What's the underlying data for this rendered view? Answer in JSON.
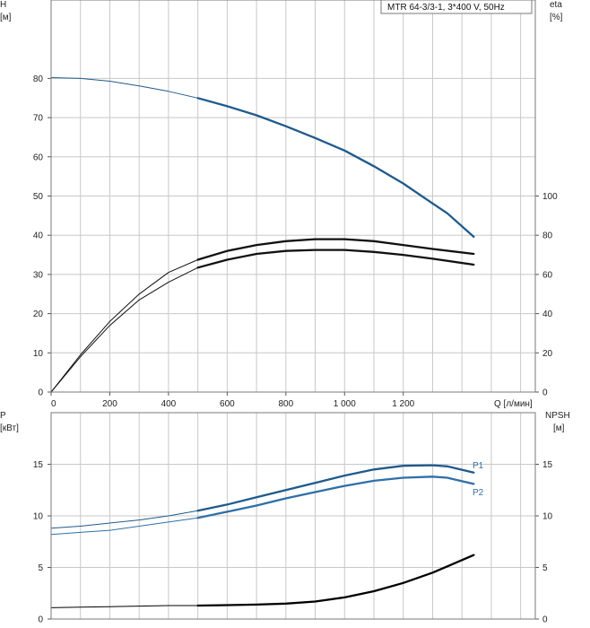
{
  "legend": "MTR 64-3/3-1, 3*400 V, 50Hz",
  "chart_data": [
    {
      "type": "line",
      "xlabel": "Q [л/мин]",
      "ylabel_left": [
        "H",
        "[м]"
      ],
      "ylabel_right": [
        "eta",
        "[%]"
      ],
      "xlim": [
        0,
        1650
      ],
      "ylim_left": [
        0,
        100
      ],
      "ylim_right": [
        0,
        200
      ],
      "xticks": [
        0,
        200,
        400,
        600,
        800,
        1000,
        1200
      ],
      "xtick_labels": [
        "0",
        "200",
        "400",
        "600",
        "800",
        "1 000",
        "1 200"
      ],
      "yticks_left": [
        0,
        10,
        20,
        30,
        40,
        50,
        60,
        70,
        80
      ],
      "yticks_right": [
        0,
        20,
        40,
        60,
        80,
        100
      ],
      "grid": true,
      "series": [
        {
          "axis": "left",
          "color": "#1f5a8c",
          "x": [
            0,
            100,
            200,
            300,
            400,
            500,
            600,
            700,
            800,
            900,
            1000,
            1100,
            1200,
            1300,
            1350,
            1440
          ],
          "y": [
            80.2,
            80.0,
            79.3,
            78.1,
            76.7,
            75.0,
            72.9,
            70.6,
            67.8,
            64.8,
            61.6,
            57.6,
            53.2,
            48.1,
            45.6,
            39.6
          ]
        },
        {
          "axis": "right",
          "color": "#111111",
          "x": [
            0,
            100,
            200,
            300,
            400,
            500,
            600,
            700,
            800,
            900,
            1000,
            1100,
            1200,
            1300,
            1440
          ],
          "y": [
            0,
            19,
            36,
            50,
            61,
            67.5,
            72,
            75,
            77,
            78,
            78,
            77,
            75,
            73,
            70.5
          ]
        },
        {
          "axis": "right",
          "color": "#111111",
          "x": [
            0,
            100,
            200,
            300,
            400,
            500,
            600,
            700,
            800,
            900,
            1000,
            1100,
            1200,
            1300,
            1440
          ],
          "y": [
            0,
            18,
            34,
            47,
            56,
            63.5,
            67.5,
            70.5,
            72,
            72.5,
            72.5,
            71.5,
            70,
            68,
            65
          ]
        }
      ]
    },
    {
      "type": "line",
      "ylabel_left": [
        "P",
        "[кВт]"
      ],
      "ylabel_right": [
        "NPSH",
        "[м]"
      ],
      "xlim": [
        0,
        1650
      ],
      "ylim_left": [
        0,
        20
      ],
      "ylim_right": [
        0,
        20
      ],
      "yticks_left": [
        0,
        5,
        10,
        15
      ],
      "yticks_right": [
        0,
        5,
        10,
        15
      ],
      "grid": true,
      "series": [
        {
          "name": "P1",
          "axis": "left",
          "color": "#1f5a8c",
          "x": [
            0,
            100,
            200,
            300,
            400,
            500,
            600,
            700,
            800,
            900,
            1000,
            1100,
            1200,
            1300,
            1350,
            1440
          ],
          "y": [
            8.8,
            9.0,
            9.3,
            9.6,
            10.0,
            10.5,
            11.1,
            11.8,
            12.5,
            13.2,
            13.9,
            14.5,
            14.85,
            14.9,
            14.8,
            14.2
          ]
        },
        {
          "name": "P2",
          "axis": "left",
          "color": "#2f6fa8",
          "x": [
            0,
            100,
            200,
            300,
            400,
            500,
            600,
            700,
            800,
            900,
            1000,
            1100,
            1200,
            1300,
            1350,
            1440
          ],
          "y": [
            8.2,
            8.4,
            8.6,
            9.0,
            9.4,
            9.8,
            10.4,
            11.0,
            11.7,
            12.3,
            12.9,
            13.4,
            13.7,
            13.8,
            13.7,
            13.1
          ]
        },
        {
          "axis": "right",
          "color": "#000000",
          "x": [
            0,
            100,
            200,
            300,
            400,
            500,
            600,
            700,
            800,
            900,
            1000,
            1100,
            1200,
            1300,
            1440
          ],
          "y": [
            1.1,
            1.15,
            1.2,
            1.25,
            1.3,
            1.3,
            1.35,
            1.4,
            1.5,
            1.7,
            2.1,
            2.7,
            3.5,
            4.5,
            6.2
          ]
        }
      ]
    }
  ]
}
